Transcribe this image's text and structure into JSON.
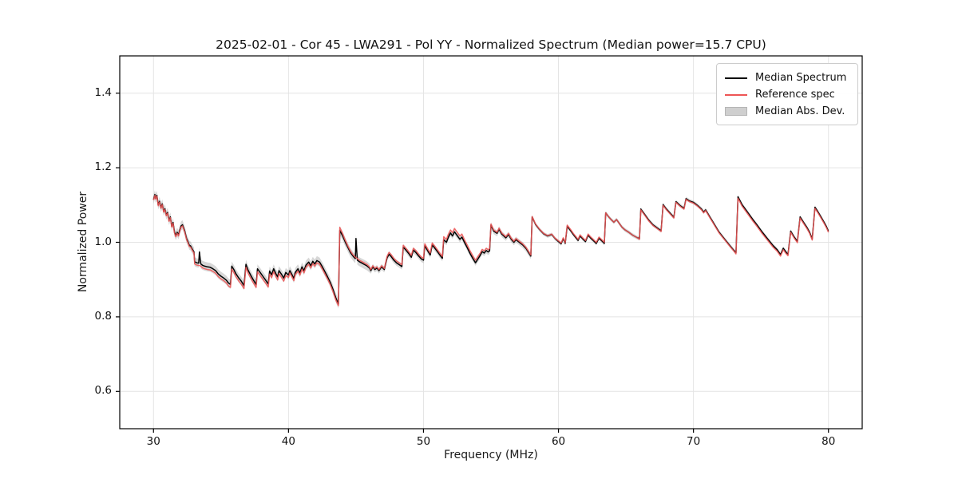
{
  "figure": {
    "title": "2025-02-01 - Cor 45 - LWA291 - Pol YY - Normalized Spectrum (Median power=15.7 CPU)",
    "xlabel": "Frequency (MHz)",
    "ylabel": "Normalized Power",
    "background": "#ffffff"
  },
  "legend": {
    "items": [
      {
        "label": "Median Spectrum",
        "type": "line",
        "color": "#000000"
      },
      {
        "label": "Reference spec",
        "type": "line",
        "color": "#ee5555"
      },
      {
        "label": "Median Abs. Dev.",
        "type": "patch",
        "color": "#cfcfcf",
        "edge": "#b5b5b5"
      }
    ]
  },
  "chart_data": {
    "type": "line",
    "title": "2025-02-01 - Cor 45 - LWA291 - Pol YY - Normalized Spectrum (Median power=15.7 CPU)",
    "xlabel": "Frequency (MHz)",
    "ylabel": "Normalized Power",
    "xlim": [
      27.5,
      82.5
    ],
    "ylim": [
      0.5,
      1.5
    ],
    "xticks": [
      30,
      40,
      50,
      60,
      70,
      80
    ],
    "yticks": [
      0.6,
      0.8,
      1.0,
      1.2,
      1.4
    ],
    "xtick_labels": [
      "30",
      "40",
      "50",
      "60",
      "70",
      "80"
    ],
    "ytick_labels": [
      "0.6",
      "0.8",
      "1.0",
      "1.2",
      "1.4"
    ],
    "grid": true,
    "legend_position": "upper right",
    "colors": {
      "median": "#000000",
      "reference": "#ee5555",
      "mad_band": "#9a9a9a",
      "grid": "#e4e4e4",
      "spine": "#000000"
    },
    "mad_segments": [
      {
        "until": 46,
        "half_width": 0.012
      },
      {
        "until": 58,
        "half_width": 0.008
      },
      {
        "until": 82.5,
        "half_width": 0.005
      }
    ],
    "series_format": [
      "freq_MHz",
      "median_spectrum",
      "reference_spec"
    ],
    "points": [
      [
        30.0,
        1.115,
        1.113
      ],
      [
        30.1,
        1.128,
        1.126
      ],
      [
        30.15,
        1.118,
        1.116
      ],
      [
        30.25,
        1.126,
        1.124
      ],
      [
        30.35,
        1.1,
        1.098
      ],
      [
        30.45,
        1.11,
        1.108
      ],
      [
        30.55,
        1.093,
        1.091
      ],
      [
        30.65,
        1.103,
        1.101
      ],
      [
        30.75,
        1.083,
        1.081
      ],
      [
        30.85,
        1.09,
        1.088
      ],
      [
        30.95,
        1.073,
        1.071
      ],
      [
        31.05,
        1.08,
        1.078
      ],
      [
        31.15,
        1.058,
        1.056
      ],
      [
        31.25,
        1.068,
        1.066
      ],
      [
        31.35,
        1.043,
        1.041
      ],
      [
        31.45,
        1.053,
        1.051
      ],
      [
        31.55,
        1.028,
        1.025
      ],
      [
        31.65,
        1.018,
        1.015
      ],
      [
        31.75,
        1.027,
        1.024
      ],
      [
        31.85,
        1.02,
        1.017
      ],
      [
        31.95,
        1.033,
        1.03
      ],
      [
        32.05,
        1.044,
        1.041
      ],
      [
        32.15,
        1.047,
        1.044
      ],
      [
        32.3,
        1.032,
        1.029
      ],
      [
        32.45,
        1.01,
        1.007
      ],
      [
        32.55,
        1.002,
        0.999
      ],
      [
        32.65,
        0.992,
        0.989
      ],
      [
        32.75,
        0.99,
        0.987
      ],
      [
        32.9,
        0.98,
        0.977
      ],
      [
        33.0,
        0.974,
        0.971
      ],
      [
        33.05,
        0.948,
        0.942
      ],
      [
        33.2,
        0.945,
        0.939
      ],
      [
        33.35,
        0.944,
        0.938
      ],
      [
        33.4,
        0.974,
        0.938
      ],
      [
        33.5,
        0.942,
        0.936
      ],
      [
        33.65,
        0.938,
        0.931
      ],
      [
        33.8,
        0.936,
        0.929
      ],
      [
        34.0,
        0.934,
        0.927
      ],
      [
        34.2,
        0.933,
        0.926
      ],
      [
        34.4,
        0.929,
        0.922
      ],
      [
        34.6,
        0.924,
        0.917
      ],
      [
        34.8,
        0.915,
        0.908
      ],
      [
        35.0,
        0.909,
        0.902
      ],
      [
        35.2,
        0.904,
        0.897
      ],
      [
        35.4,
        0.898,
        0.891
      ],
      [
        35.55,
        0.891,
        0.883
      ],
      [
        35.7,
        0.887,
        0.879
      ],
      [
        35.8,
        0.936,
        0.928
      ],
      [
        35.95,
        0.927,
        0.919
      ],
      [
        36.1,
        0.916,
        0.908
      ],
      [
        36.3,
        0.905,
        0.897
      ],
      [
        36.5,
        0.896,
        0.888
      ],
      [
        36.7,
        0.884,
        0.876
      ],
      [
        36.85,
        0.941,
        0.933
      ],
      [
        37.0,
        0.926,
        0.918
      ],
      [
        37.2,
        0.912,
        0.904
      ],
      [
        37.4,
        0.899,
        0.891
      ],
      [
        37.6,
        0.887,
        0.879
      ],
      [
        37.7,
        0.929,
        0.921
      ],
      [
        37.9,
        0.919,
        0.911
      ],
      [
        38.1,
        0.909,
        0.901
      ],
      [
        38.3,
        0.899,
        0.891
      ],
      [
        38.5,
        0.888,
        0.88
      ],
      [
        38.6,
        0.923,
        0.915
      ],
      [
        38.75,
        0.913,
        0.905
      ],
      [
        38.9,
        0.929,
        0.921
      ],
      [
        39.05,
        0.917,
        0.909
      ],
      [
        39.2,
        0.907,
        0.899
      ],
      [
        39.3,
        0.924,
        0.916
      ],
      [
        39.5,
        0.913,
        0.905
      ],
      [
        39.65,
        0.904,
        0.896
      ],
      [
        39.8,
        0.919,
        0.911
      ],
      [
        40.0,
        0.912,
        0.906
      ],
      [
        40.1,
        0.924,
        0.918
      ],
      [
        40.25,
        0.914,
        0.908
      ],
      [
        40.4,
        0.903,
        0.897
      ],
      [
        40.5,
        0.919,
        0.913
      ],
      [
        40.7,
        0.929,
        0.923
      ],
      [
        40.85,
        0.918,
        0.912
      ],
      [
        41.0,
        0.934,
        0.928
      ],
      [
        41.15,
        0.924,
        0.918
      ],
      [
        41.3,
        0.939,
        0.933
      ],
      [
        41.5,
        0.947,
        0.941
      ],
      [
        41.65,
        0.937,
        0.931
      ],
      [
        41.8,
        0.949,
        0.943
      ],
      [
        41.95,
        0.942,
        0.936
      ],
      [
        42.1,
        0.951,
        0.945
      ],
      [
        42.3,
        0.947,
        0.941
      ],
      [
        42.5,
        0.935,
        0.929
      ],
      [
        42.7,
        0.921,
        0.915
      ],
      [
        42.9,
        0.907,
        0.901
      ],
      [
        43.1,
        0.892,
        0.886
      ],
      [
        43.3,
        0.873,
        0.867
      ],
      [
        43.5,
        0.852,
        0.846
      ],
      [
        43.7,
        0.834,
        0.83
      ],
      [
        43.8,
        1.032,
        1.04
      ],
      [
        44.0,
        1.018,
        1.024
      ],
      [
        44.2,
        1.001,
        1.006
      ],
      [
        44.4,
        0.986,
        0.99
      ],
      [
        44.6,
        0.972,
        0.976
      ],
      [
        44.8,
        0.962,
        0.966
      ],
      [
        44.95,
        0.956,
        0.96
      ],
      [
        45.0,
        1.01,
        0.959
      ],
      [
        45.1,
        0.952,
        0.956
      ],
      [
        45.25,
        0.948,
        0.952
      ],
      [
        45.4,
        0.945,
        0.949
      ],
      [
        45.6,
        0.941,
        0.945
      ],
      [
        45.8,
        0.937,
        0.941
      ],
      [
        46.0,
        0.931,
        0.934
      ],
      [
        46.1,
        0.924,
        0.927
      ],
      [
        46.25,
        0.934,
        0.937
      ],
      [
        46.4,
        0.927,
        0.93
      ],
      [
        46.55,
        0.931,
        0.934
      ],
      [
        46.7,
        0.924,
        0.927
      ],
      [
        46.9,
        0.934,
        0.937
      ],
      [
        47.1,
        0.927,
        0.93
      ],
      [
        47.3,
        0.958,
        0.962
      ],
      [
        47.45,
        0.968,
        0.973
      ],
      [
        47.6,
        0.962,
        0.967
      ],
      [
        47.8,
        0.952,
        0.957
      ],
      [
        48.0,
        0.945,
        0.95
      ],
      [
        48.2,
        0.94,
        0.945
      ],
      [
        48.4,
        0.935,
        0.94
      ],
      [
        48.5,
        0.987,
        0.992
      ],
      [
        48.7,
        0.979,
        0.984
      ],
      [
        48.9,
        0.97,
        0.975
      ],
      [
        49.1,
        0.96,
        0.965
      ],
      [
        49.25,
        0.979,
        0.984
      ],
      [
        49.45,
        0.972,
        0.977
      ],
      [
        49.65,
        0.963,
        0.968
      ],
      [
        49.85,
        0.955,
        0.96
      ],
      [
        50.0,
        0.952,
        0.957
      ],
      [
        50.1,
        0.991,
        0.996
      ],
      [
        50.3,
        0.978,
        0.983
      ],
      [
        50.5,
        0.966,
        0.971
      ],
      [
        50.65,
        0.993,
        0.998
      ],
      [
        50.85,
        0.984,
        0.989
      ],
      [
        51.05,
        0.974,
        0.979
      ],
      [
        51.25,
        0.964,
        0.969
      ],
      [
        51.4,
        0.957,
        0.962
      ],
      [
        51.5,
        1.007,
        1.015
      ],
      [
        51.7,
        1.0,
        1.008
      ],
      [
        51.85,
        1.014,
        1.022
      ],
      [
        52.0,
        1.025,
        1.033
      ],
      [
        52.15,
        1.017,
        1.026
      ],
      [
        52.3,
        1.028,
        1.037
      ],
      [
        52.5,
        1.018,
        1.027
      ],
      [
        52.7,
        1.008,
        1.017
      ],
      [
        52.85,
        1.014,
        1.022
      ],
      [
        53.05,
        0.999,
        1.006
      ],
      [
        53.25,
        0.985,
        0.992
      ],
      [
        53.45,
        0.97,
        0.977
      ],
      [
        53.65,
        0.957,
        0.964
      ],
      [
        53.85,
        0.945,
        0.952
      ],
      [
        54.05,
        0.956,
        0.963
      ],
      [
        54.2,
        0.965,
        0.971
      ],
      [
        54.35,
        0.975,
        0.981
      ],
      [
        54.5,
        0.971,
        0.977
      ],
      [
        54.65,
        0.978,
        0.984
      ],
      [
        54.8,
        0.974,
        0.98
      ],
      [
        54.9,
        0.977,
        0.983
      ],
      [
        55.0,
        1.046,
        1.049
      ],
      [
        55.2,
        1.03,
        1.033
      ],
      [
        55.45,
        1.024,
        1.027
      ],
      [
        55.6,
        1.035,
        1.038
      ],
      [
        55.8,
        1.022,
        1.025
      ],
      [
        56.1,
        1.012,
        1.015
      ],
      [
        56.3,
        1.021,
        1.024
      ],
      [
        56.5,
        1.008,
        1.011
      ],
      [
        56.7,
        1.0,
        1.003
      ],
      [
        56.85,
        1.007,
        1.01
      ],
      [
        57.1,
        1.0,
        1.003
      ],
      [
        57.35,
        0.993,
        0.996
      ],
      [
        57.6,
        0.983,
        0.986
      ],
      [
        57.95,
        0.963,
        0.966
      ],
      [
        58.05,
        1.068,
        1.069
      ],
      [
        58.3,
        1.048,
        1.049
      ],
      [
        58.6,
        1.034,
        1.035
      ],
      [
        58.9,
        1.023,
        1.024
      ],
      [
        59.2,
        1.017,
        1.018
      ],
      [
        59.5,
        1.021,
        1.022
      ],
      [
        59.75,
        1.01,
        1.011
      ],
      [
        60.0,
        1.002,
        1.004
      ],
      [
        60.2,
        0.996,
        0.998
      ],
      [
        60.35,
        1.01,
        1.012
      ],
      [
        60.5,
        0.997,
        0.999
      ],
      [
        60.65,
        1.043,
        1.046
      ],
      [
        60.9,
        1.031,
        1.034
      ],
      [
        61.1,
        1.021,
        1.024
      ],
      [
        61.3,
        1.012,
        1.015
      ],
      [
        61.45,
        1.005,
        1.008
      ],
      [
        61.6,
        1.017,
        1.02
      ],
      [
        61.8,
        1.009,
        1.012
      ],
      [
        62.0,
        1.002,
        1.005
      ],
      [
        62.2,
        1.019,
        1.022
      ],
      [
        62.4,
        1.011,
        1.014
      ],
      [
        62.6,
        1.004,
        1.007
      ],
      [
        62.8,
        0.997,
        1.0
      ],
      [
        63.0,
        1.011,
        1.014
      ],
      [
        63.2,
        1.004,
        1.007
      ],
      [
        63.4,
        0.997,
        1.0
      ],
      [
        63.5,
        1.079,
        1.079
      ],
      [
        63.7,
        1.069,
        1.069
      ],
      [
        63.9,
        1.061,
        1.061
      ],
      [
        64.1,
        1.054,
        1.054
      ],
      [
        64.3,
        1.061,
        1.061
      ],
      [
        64.5,
        1.051,
        1.051
      ],
      [
        64.7,
        1.041,
        1.041
      ],
      [
        64.9,
        1.034,
        1.034
      ],
      [
        65.2,
        1.027,
        1.027
      ],
      [
        65.5,
        1.019,
        1.019
      ],
      [
        65.8,
        1.013,
        1.013
      ],
      [
        66.0,
        1.01,
        1.008
      ],
      [
        66.1,
        1.089,
        1.087
      ],
      [
        66.4,
        1.074,
        1.072
      ],
      [
        66.7,
        1.059,
        1.057
      ],
      [
        67.0,
        1.047,
        1.045
      ],
      [
        67.3,
        1.039,
        1.037
      ],
      [
        67.6,
        1.031,
        1.029
      ],
      [
        67.75,
        1.101,
        1.099
      ],
      [
        68.0,
        1.089,
        1.087
      ],
      [
        68.3,
        1.077,
        1.075
      ],
      [
        68.55,
        1.067,
        1.065
      ],
      [
        68.7,
        1.109,
        1.107
      ],
      [
        69.0,
        1.099,
        1.097
      ],
      [
        69.3,
        1.091,
        1.089
      ],
      [
        69.45,
        1.117,
        1.115
      ],
      [
        69.7,
        1.111,
        1.109
      ],
      [
        70.0,
        1.107,
        1.105
      ],
      [
        70.3,
        1.099,
        1.097
      ],
      [
        70.6,
        1.089,
        1.087
      ],
      [
        70.75,
        1.081,
        1.079
      ],
      [
        70.9,
        1.087,
        1.085
      ],
      [
        71.2,
        1.069,
        1.067
      ],
      [
        71.5,
        1.051,
        1.049
      ],
      [
        71.9,
        1.027,
        1.025
      ],
      [
        72.3,
        1.009,
        1.007
      ],
      [
        72.7,
        0.991,
        0.989
      ],
      [
        73.0,
        0.978,
        0.976
      ],
      [
        73.15,
        0.972,
        0.969
      ],
      [
        73.3,
        1.122,
        1.118
      ],
      [
        73.6,
        1.101,
        1.097
      ],
      [
        74.0,
        1.081,
        1.077
      ],
      [
        74.4,
        1.061,
        1.057
      ],
      [
        74.7,
        1.047,
        1.043
      ],
      [
        75.1,
        1.027,
        1.023
      ],
      [
        75.5,
        1.009,
        1.005
      ],
      [
        75.9,
        0.991,
        0.987
      ],
      [
        76.2,
        0.98,
        0.976
      ],
      [
        76.45,
        0.967,
        0.963
      ],
      [
        76.65,
        0.984,
        0.98
      ],
      [
        76.85,
        0.974,
        0.97
      ],
      [
        77.0,
        0.967,
        0.964
      ],
      [
        77.2,
        1.03,
        1.027
      ],
      [
        77.45,
        1.015,
        1.012
      ],
      [
        77.7,
        1.002,
        0.999
      ],
      [
        77.9,
        1.068,
        1.065
      ],
      [
        78.15,
        1.054,
        1.051
      ],
      [
        78.4,
        1.04,
        1.037
      ],
      [
        78.6,
        1.027,
        1.024
      ],
      [
        78.8,
        1.009,
        1.006
      ],
      [
        79.0,
        1.094,
        1.091
      ],
      [
        79.2,
        1.083,
        1.08
      ],
      [
        79.45,
        1.068,
        1.065
      ],
      [
        79.7,
        1.052,
        1.049
      ],
      [
        79.85,
        1.042,
        1.039
      ],
      [
        80.0,
        1.03,
        1.027
      ]
    ]
  }
}
